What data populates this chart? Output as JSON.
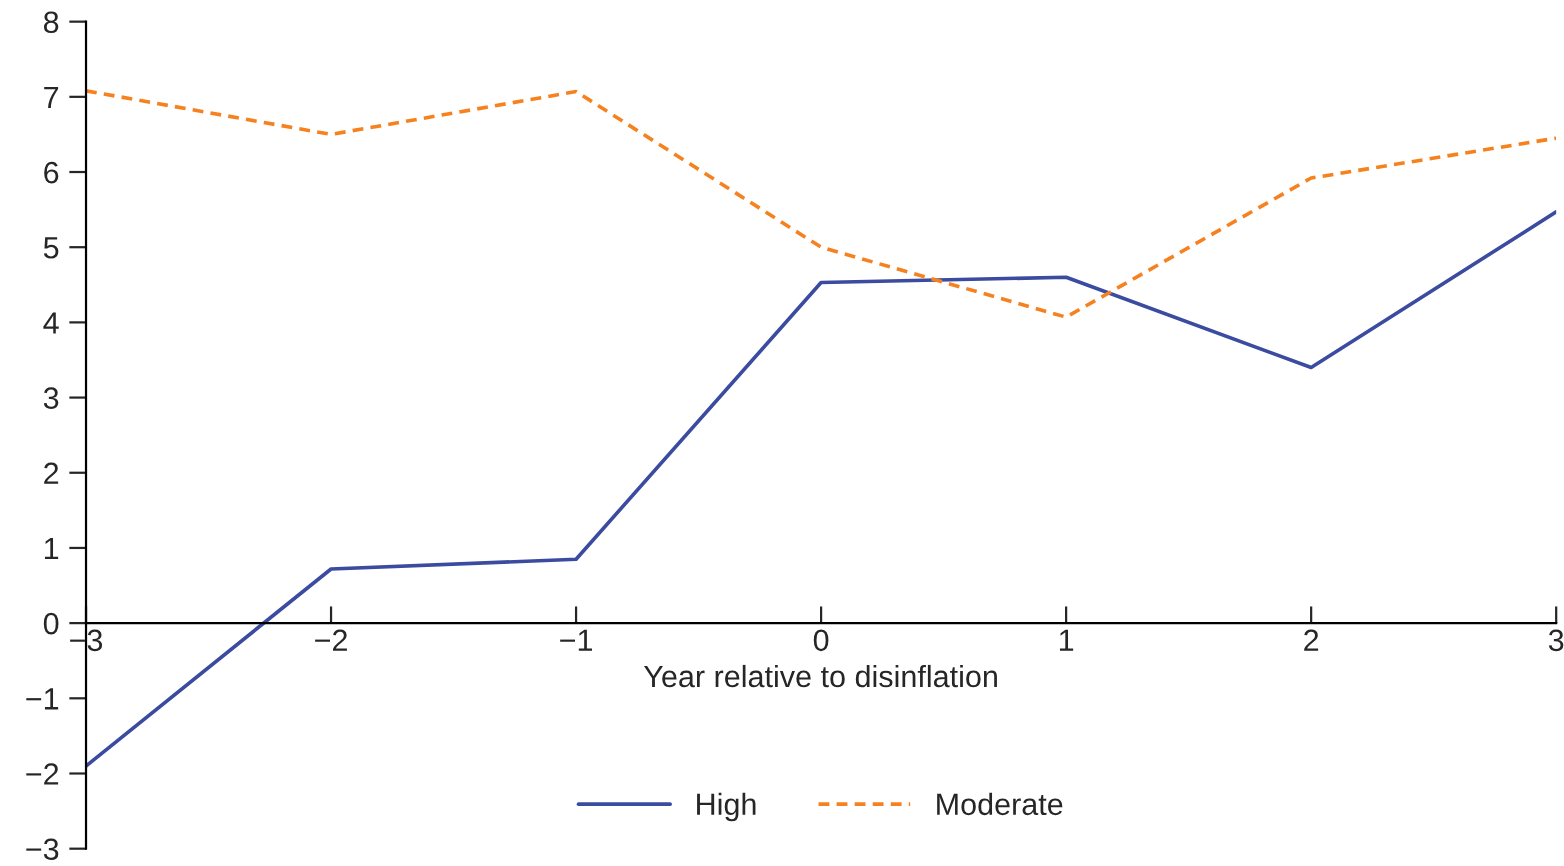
{
  "chart_data": {
    "type": "line",
    "xlabel": "Year relative to disinflation",
    "x": [
      -3,
      -2,
      -1,
      0,
      1,
      2,
      3
    ],
    "series": [
      {
        "name": "High",
        "color": "#3b4ba0",
        "line_style": "solid",
        "values": [
          -1.9,
          0.72,
          0.85,
          4.53,
          4.6,
          3.4,
          5.47
        ]
      },
      {
        "name": "Moderate",
        "color": "#f5821f",
        "line_style": "dashed",
        "values": [
          7.08,
          6.5,
          7.07,
          5.0,
          4.07,
          5.92,
          6.45
        ]
      }
    ],
    "xlim": [
      -3,
      3
    ],
    "xticks": [
      {
        "value": -3,
        "label": "−3"
      },
      {
        "value": -2,
        "label": "−2"
      },
      {
        "value": -1,
        "label": "−1"
      },
      0,
      1,
      2,
      3
    ],
    "ylim": [
      -3,
      8
    ],
    "yticks": [
      {
        "value": -3,
        "label": "−3"
      },
      {
        "value": -2,
        "label": "−2"
      },
      {
        "value": -1,
        "label": "−1"
      },
      0,
      1,
      2,
      3,
      4,
      5,
      6,
      7,
      8
    ],
    "grid": false,
    "legend": "bottom",
    "marker": "none"
  }
}
